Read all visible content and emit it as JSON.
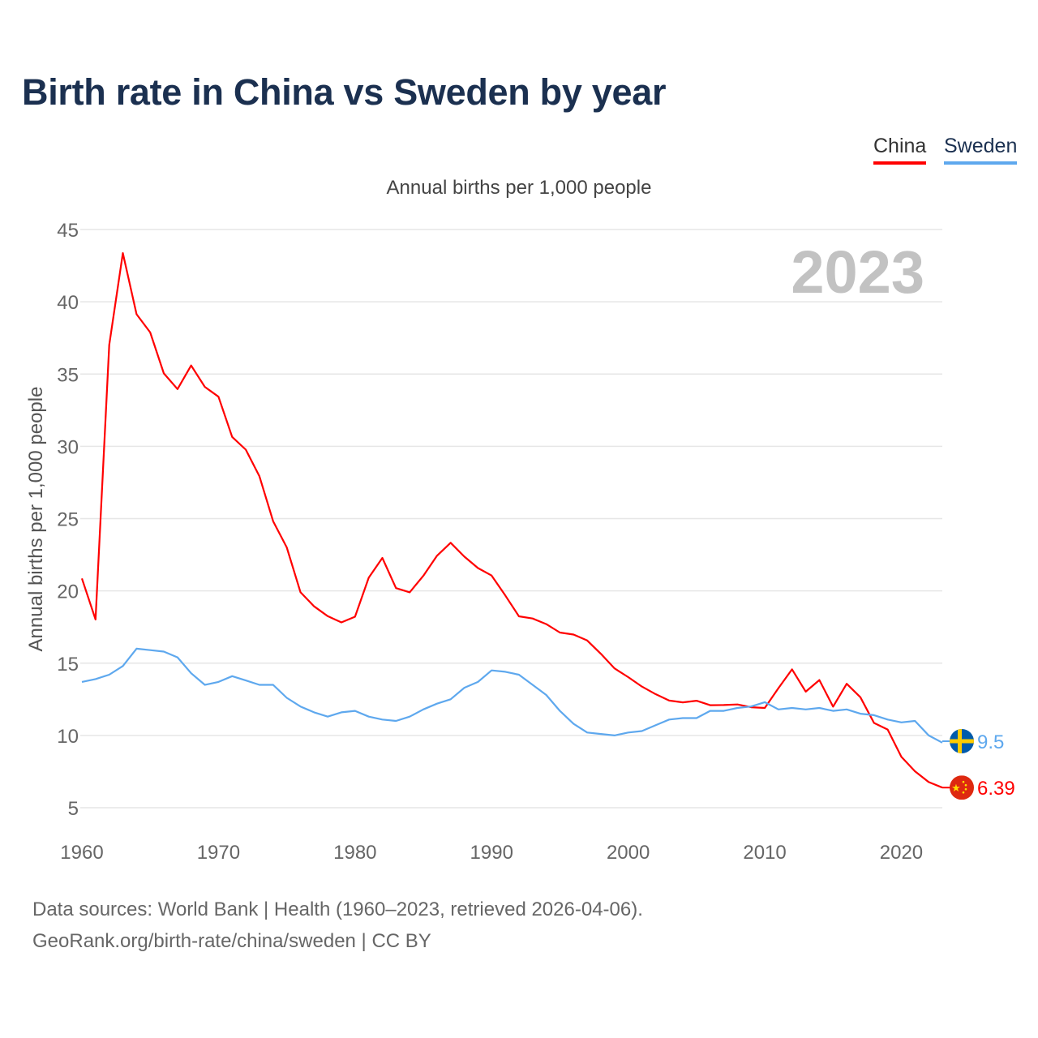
{
  "title": "Birth rate in China vs Sweden by year",
  "footer": {
    "line1": "Data sources: World Bank | Health (1960–2023, retrieved 2026-04-06).",
    "line2": "GeoRank.org/birth-rate/china/sweden | CC BY"
  },
  "chart_data": {
    "type": "line",
    "title": "Birth rate in China vs Sweden by year",
    "subtitle": "Annual births per 1,000 people",
    "ylabel": "Annual births per 1,000 people",
    "xlabel": "",
    "year_watermark": "2023",
    "xlim": [
      1960,
      2023
    ],
    "ylim": [
      5,
      45
    ],
    "yticks": [
      "5",
      "10",
      "15",
      "20",
      "25",
      "30",
      "35",
      "40",
      "45"
    ],
    "xticks": [
      "1960",
      "1970",
      "1980",
      "1990",
      "2000",
      "2010",
      "2020"
    ],
    "grid": true,
    "legend_position": "top-right",
    "x_start": 1960,
    "series": [
      {
        "name": "China",
        "color": "#ff0000",
        "flag": "china-flag",
        "end_label": "6.39",
        "values": [
          20.86,
          18.02,
          37.01,
          43.37,
          39.14,
          37.88,
          35.05,
          33.96,
          35.59,
          34.11,
          33.43,
          30.65,
          29.77,
          27.93,
          24.82,
          23.01,
          19.91,
          18.93,
          18.25,
          17.82,
          18.21,
          20.91,
          22.28,
          20.19,
          19.9,
          21.04,
          22.43,
          23.33,
          22.37,
          21.58,
          21.06,
          19.68,
          18.24,
          18.09,
          17.7,
          17.12,
          16.98,
          16.57,
          15.64,
          14.64,
          14.03,
          13.38,
          12.86,
          12.41,
          12.29,
          12.4,
          12.09,
          12.1,
          12.14,
          11.95,
          11.9,
          13.27,
          14.57,
          13.03,
          13.83,
          11.99,
          13.57,
          12.64,
          10.86,
          10.41,
          8.52,
          7.52,
          6.77,
          6.39
        ]
      },
      {
        "name": "Sweden",
        "color": "#5ea8ee",
        "flag": "sweden-flag",
        "end_label": "9.5",
        "values": [
          13.7,
          13.9,
          14.2,
          14.8,
          16.0,
          15.9,
          15.8,
          15.4,
          14.3,
          13.5,
          13.7,
          14.1,
          13.8,
          13.5,
          13.5,
          12.6,
          12.0,
          11.6,
          11.3,
          11.6,
          11.7,
          11.3,
          11.1,
          11.0,
          11.3,
          11.8,
          12.2,
          12.5,
          13.3,
          13.7,
          14.5,
          14.4,
          14.2,
          13.5,
          12.8,
          11.7,
          10.8,
          10.2,
          10.1,
          10.0,
          10.2,
          10.3,
          10.7,
          11.1,
          11.2,
          11.2,
          11.7,
          11.7,
          11.9,
          12.0,
          12.3,
          11.8,
          11.9,
          11.8,
          11.9,
          11.7,
          11.8,
          11.5,
          11.4,
          11.1,
          10.9,
          11.0,
          10.0,
          9.5
        ]
      }
    ]
  }
}
